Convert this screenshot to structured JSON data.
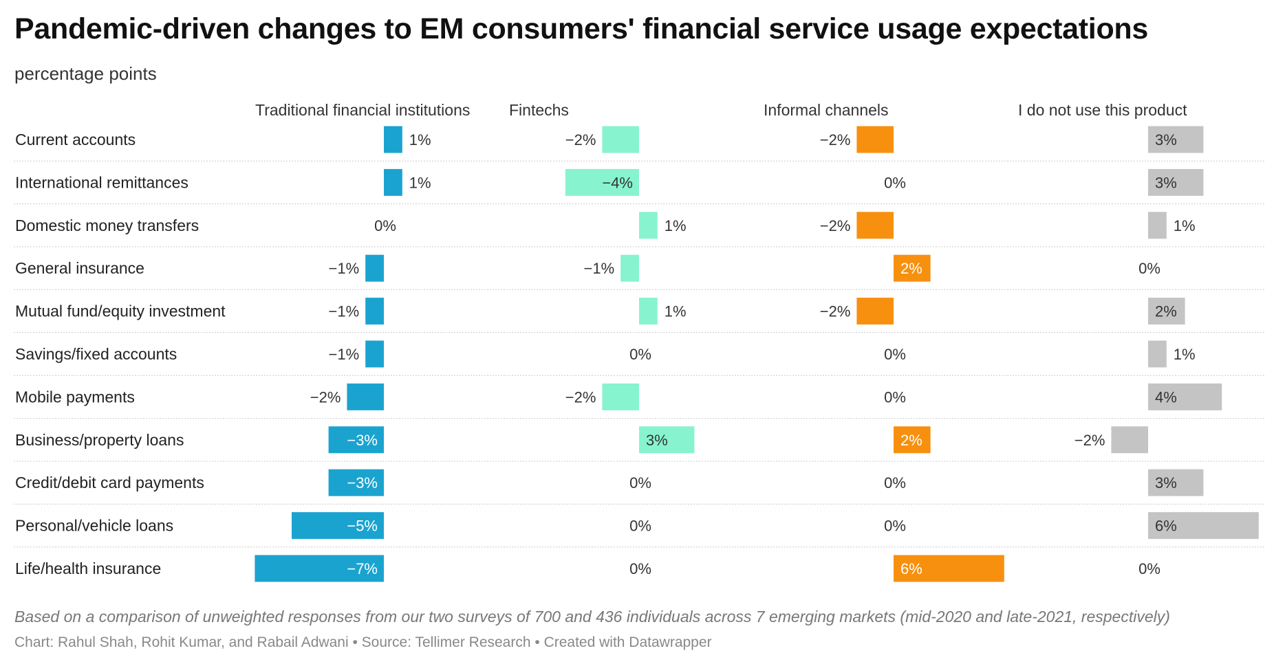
{
  "title": "Pandemic-driven changes to EM consumers' financial service usage expectations",
  "subtitle": "percentage points",
  "note": "Based on a comparison of unweighted responses from our two surveys of 700 and 436 individuals across 7 emerging markets (mid-2020 and late-2021, respectively)",
  "credits": {
    "chart": "Chart: Rahul Shah, Rohit Kumar, and Rabail Adwani",
    "separator": " • ",
    "source": "Source: Tellimer Research",
    "created": "Created with Datawrapper"
  },
  "colors": {
    "traditional": "#1ba3d0",
    "fintechs": "#87f3cf",
    "informal": "#f7900e",
    "nouse": "#c4c4c4",
    "divider": "#cccccc"
  },
  "chart_data": {
    "type": "bar",
    "orientation": "horizontal",
    "unit": "%",
    "categories": [
      "Current accounts",
      "International remittances",
      "Domestic money transfers",
      "General insurance",
      "Mutual fund/equity investment",
      "Savings/fixed accounts",
      "Mobile payments",
      "Business/property loans",
      "Credit/debit card payments",
      "Personal/vehicle loans",
      "Life/health insurance"
    ],
    "series": [
      {
        "name": "Traditional financial institutions",
        "color_key": "traditional",
        "values": [
          1,
          1,
          0,
          -1,
          -1,
          -1,
          -2,
          -3,
          -3,
          -5,
          -7
        ]
      },
      {
        "name": "Fintechs",
        "color_key": "fintechs",
        "values": [
          -2,
          -4,
          1,
          -1,
          1,
          0,
          -2,
          3,
          0,
          0,
          0
        ]
      },
      {
        "name": "Informal channels",
        "color_key": "informal",
        "values": [
          -2,
          0,
          -2,
          2,
          -2,
          0,
          0,
          2,
          0,
          0,
          6
        ]
      },
      {
        "name": "I do not use this product",
        "color_key": "nouse",
        "values": [
          3,
          3,
          1,
          0,
          2,
          1,
          4,
          -2,
          3,
          6,
          0
        ]
      }
    ],
    "xlim": [
      -7,
      6
    ]
  }
}
